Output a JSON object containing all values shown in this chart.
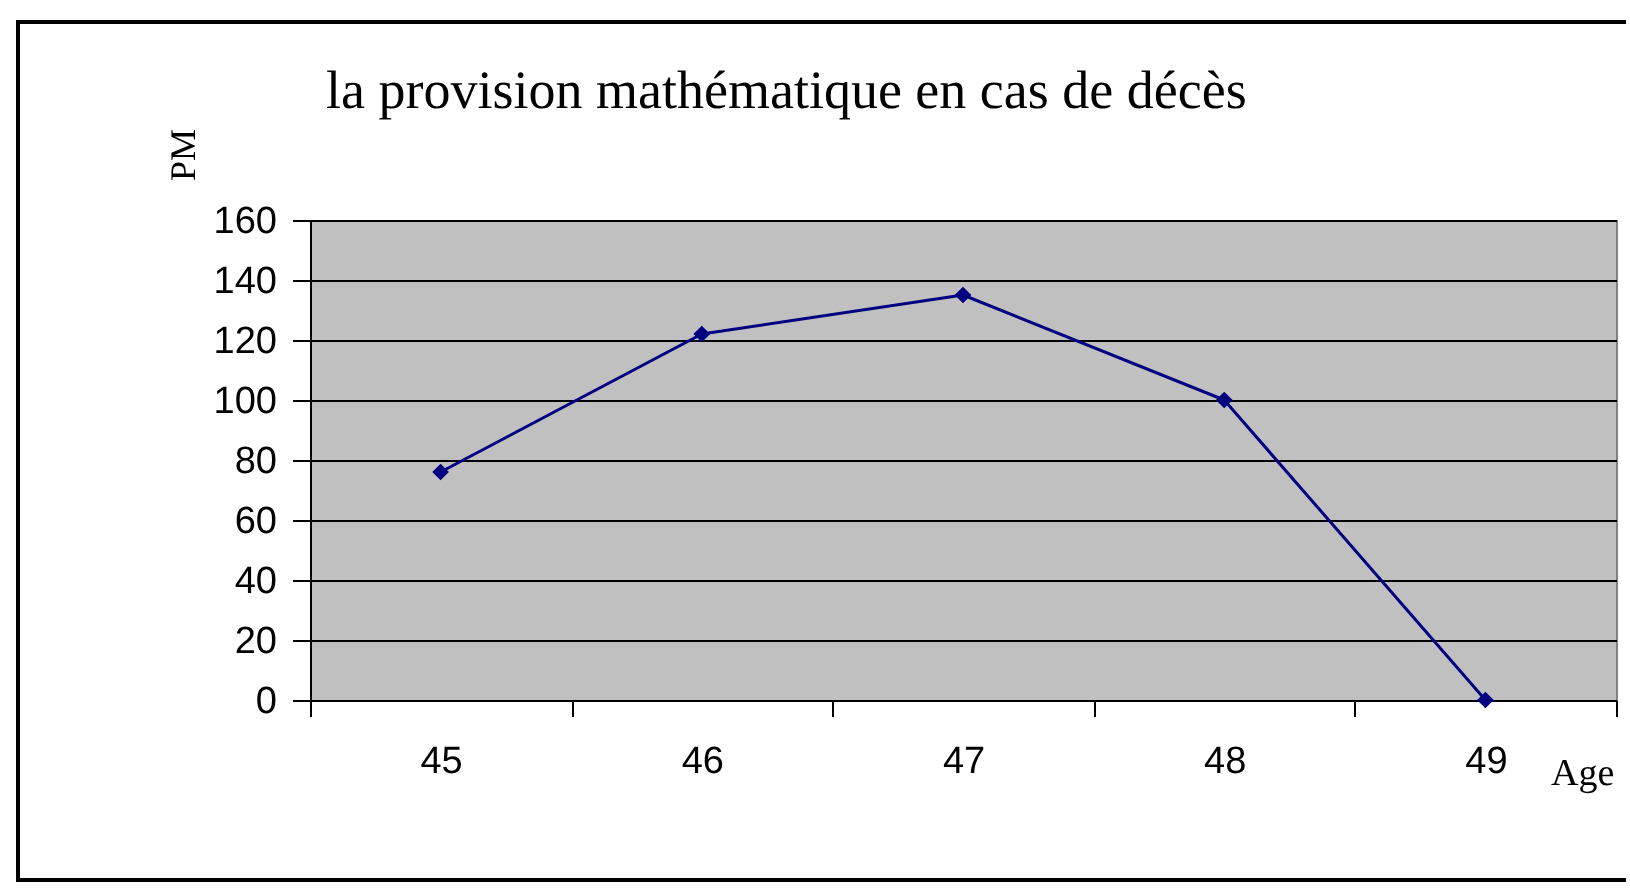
{
  "chart_data": {
    "type": "line",
    "title": "la provision mathématique en cas de décès",
    "xlabel": "Age",
    "ylabel": "PM",
    "categories": [
      "45",
      "46",
      "47",
      "48",
      "49"
    ],
    "series": [
      {
        "color": "#000080",
        "values": [
          76,
          122,
          135,
          100,
          0
        ]
      }
    ],
    "ylim": [
      0,
      160
    ],
    "yticks": [
      0,
      20,
      40,
      60,
      80,
      100,
      120,
      140,
      160
    ],
    "grid": "y",
    "marker": "diamond",
    "line_style": "solid"
  }
}
